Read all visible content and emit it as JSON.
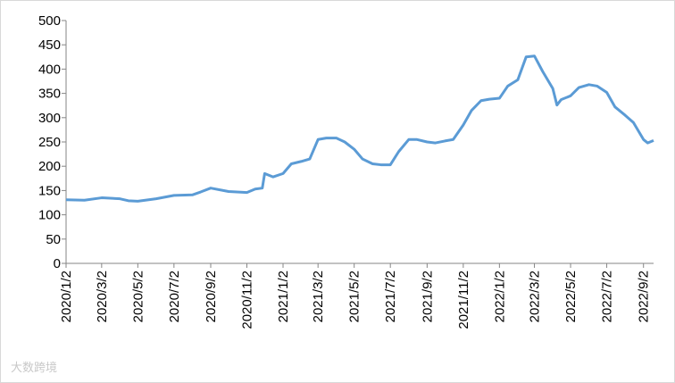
{
  "chart_data": {
    "type": "line",
    "x": [
      "2020/1/2",
      "2020/2/2",
      "2020/3/2",
      "2020/4/2",
      "2020/4/16",
      "2020/5/2",
      "2020/6/2",
      "2020/7/2",
      "2020/8/2",
      "2020/8/16",
      "2020/9/2",
      "2020/10/2",
      "2020/11/2",
      "2020/11/16",
      "2020/11/28",
      "2020/12/2",
      "2020/12/16",
      "2021/1/2",
      "2021/1/16",
      "2021/2/2",
      "2021/2/16",
      "2021/3/2",
      "2021/3/16",
      "2021/4/2",
      "2021/4/16",
      "2021/5/2",
      "2021/5/16",
      "2021/6/2",
      "2021/6/16",
      "2021/7/2",
      "2021/7/16",
      "2021/8/2",
      "2021/8/16",
      "2021/9/2",
      "2021/9/16",
      "2021/10/2",
      "2021/10/16",
      "2021/11/2",
      "2021/11/16",
      "2021/12/2",
      "2021/12/16",
      "2022/1/2",
      "2022/1/16",
      "2022/2/2",
      "2022/2/16",
      "2022/3/2",
      "2022/3/16",
      "2022/4/2",
      "2022/4/9",
      "2022/4/16",
      "2022/5/2",
      "2022/5/16",
      "2022/6/2",
      "2022/6/16",
      "2022/7/2",
      "2022/7/16",
      "2022/8/2",
      "2022/8/16",
      "2022/9/2",
      "2022/9/9",
      "2022/9/19"
    ],
    "series": [
      {
        "color": "#5b9bd5",
        "values": [
          131,
          130,
          135,
          133,
          129,
          128,
          133,
          140,
          141,
          147,
          155,
          148,
          146,
          153,
          155,
          185,
          178,
          185,
          205,
          210,
          215,
          255,
          258,
          258,
          250,
          235,
          215,
          205,
          203,
          203,
          230,
          255,
          255,
          250,
          248,
          252,
          255,
          285,
          315,
          335,
          338,
          340,
          365,
          378,
          425,
          427,
          395,
          360,
          326,
          337,
          345,
          362,
          368,
          365,
          352,
          322,
          305,
          290,
          255,
          248,
          253
        ]
      }
    ],
    "xlim": [
      "2020/1/2",
      "2022/9/19"
    ],
    "xticks": [
      "2020/1/2",
      "2020/3/2",
      "2020/5/2",
      "2020/7/2",
      "2020/9/2",
      "2020/11/2",
      "2021/1/2",
      "2021/3/2",
      "2021/5/2",
      "2021/7/2",
      "2021/9/2",
      "2021/11/2",
      "2022/1/2",
      "2022/3/2",
      "2022/5/2",
      "2022/7/2",
      "2022/9/2"
    ],
    "ylim": [
      0,
      500
    ],
    "yticks": [
      0,
      50,
      100,
      150,
      200,
      250,
      300,
      350,
      400,
      450,
      500
    ],
    "grid": false,
    "watermark": "大数跨境"
  }
}
